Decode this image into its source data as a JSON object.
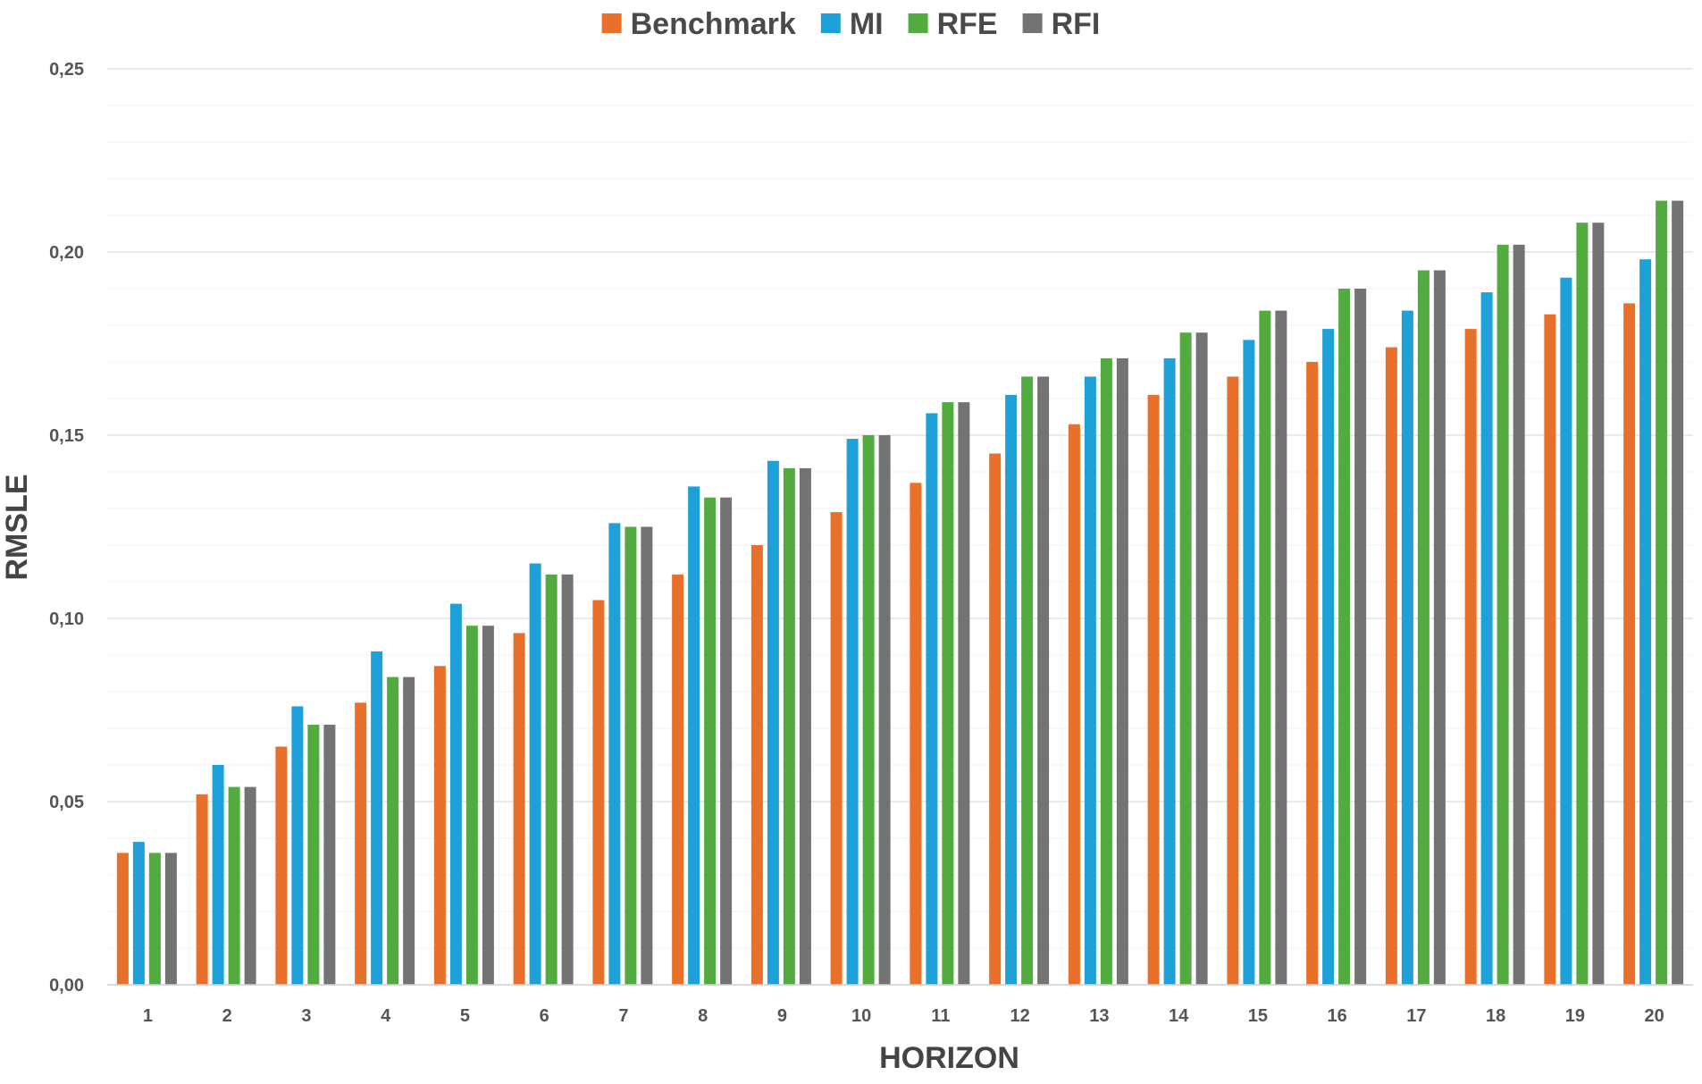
{
  "chart_data": {
    "type": "bar",
    "title": "",
    "xlabel": "HORIZON",
    "ylabel": "RMSLE",
    "ylim": [
      0,
      0.25
    ],
    "yticks": [
      "0,00",
      "0,05",
      "0,10",
      "0,15",
      "0,20",
      "0,25"
    ],
    "grid": true,
    "legend_position": "top-center",
    "categories": [
      "1",
      "2",
      "3",
      "4",
      "5",
      "6",
      "7",
      "8",
      "9",
      "10",
      "11",
      "12",
      "13",
      "14",
      "15",
      "16",
      "17",
      "18",
      "19",
      "20"
    ],
    "series": [
      {
        "name": "Benchmark",
        "color": "#e8702a",
        "values": [
          0.036,
          0.052,
          0.065,
          0.077,
          0.087,
          0.096,
          0.105,
          0.112,
          0.12,
          0.129,
          0.137,
          0.145,
          0.153,
          0.161,
          0.166,
          0.17,
          0.174,
          0.179,
          0.183,
          0.186
        ]
      },
      {
        "name": "MI",
        "color": "#1ea1d9",
        "values": [
          0.039,
          0.06,
          0.076,
          0.091,
          0.104,
          0.115,
          0.126,
          0.136,
          0.143,
          0.149,
          0.156,
          0.161,
          0.166,
          0.171,
          0.176,
          0.179,
          0.184,
          0.189,
          0.193,
          0.198
        ]
      },
      {
        "name": "RFE",
        "color": "#52ab3f",
        "values": [
          0.036,
          0.054,
          0.071,
          0.084,
          0.098,
          0.112,
          0.125,
          0.133,
          0.141,
          0.15,
          0.159,
          0.166,
          0.171,
          0.178,
          0.184,
          0.19,
          0.195,
          0.202,
          0.208,
          0.214
        ]
      },
      {
        "name": "RFI",
        "color": "#737373",
        "values": [
          0.036,
          0.054,
          0.071,
          0.084,
          0.098,
          0.112,
          0.125,
          0.133,
          0.141,
          0.15,
          0.159,
          0.166,
          0.171,
          0.178,
          0.184,
          0.19,
          0.195,
          0.202,
          0.208,
          0.214
        ]
      }
    ]
  }
}
